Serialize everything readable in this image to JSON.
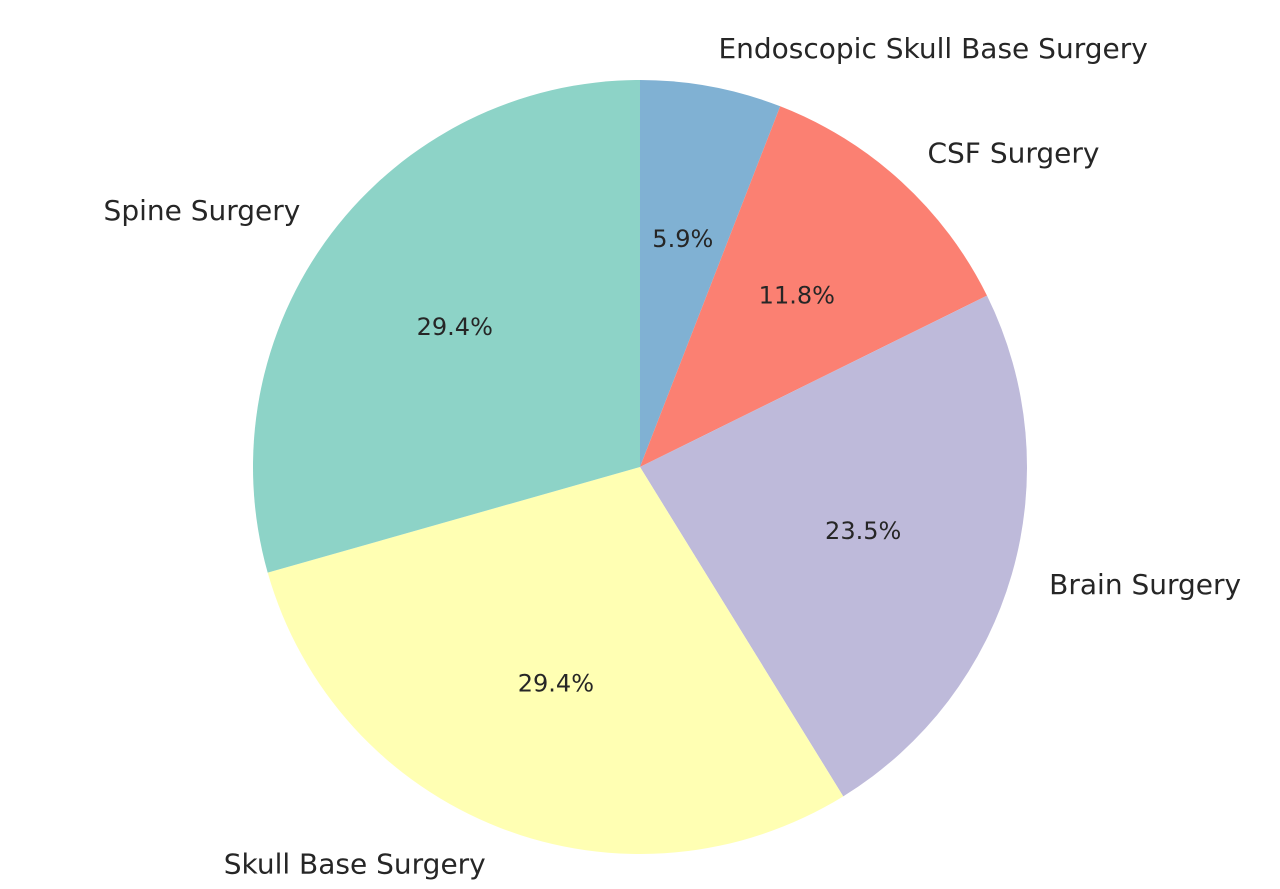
{
  "chart_data": {
    "type": "pie",
    "title": "",
    "start_angle_deg": 90,
    "direction": "clockwise",
    "legend": "none",
    "slices": [
      {
        "label": "Endoscopic Skull Base Surgery",
        "value": 5.9,
        "pct_label": "5.9%",
        "color": "#80b1d3"
      },
      {
        "label": "CSF Surgery",
        "value": 11.8,
        "pct_label": "11.8%",
        "color": "#fb8072"
      },
      {
        "label": "Brain Surgery",
        "value": 23.5,
        "pct_label": "23.5%",
        "color": "#bebada"
      },
      {
        "label": "Skull Base Surgery",
        "value": 29.4,
        "pct_label": "29.4%",
        "color": "#ffffb3"
      },
      {
        "label": "Spine Surgery",
        "value": 29.4,
        "pct_label": "29.4%",
        "color": "#8dd3c7"
      }
    ]
  }
}
